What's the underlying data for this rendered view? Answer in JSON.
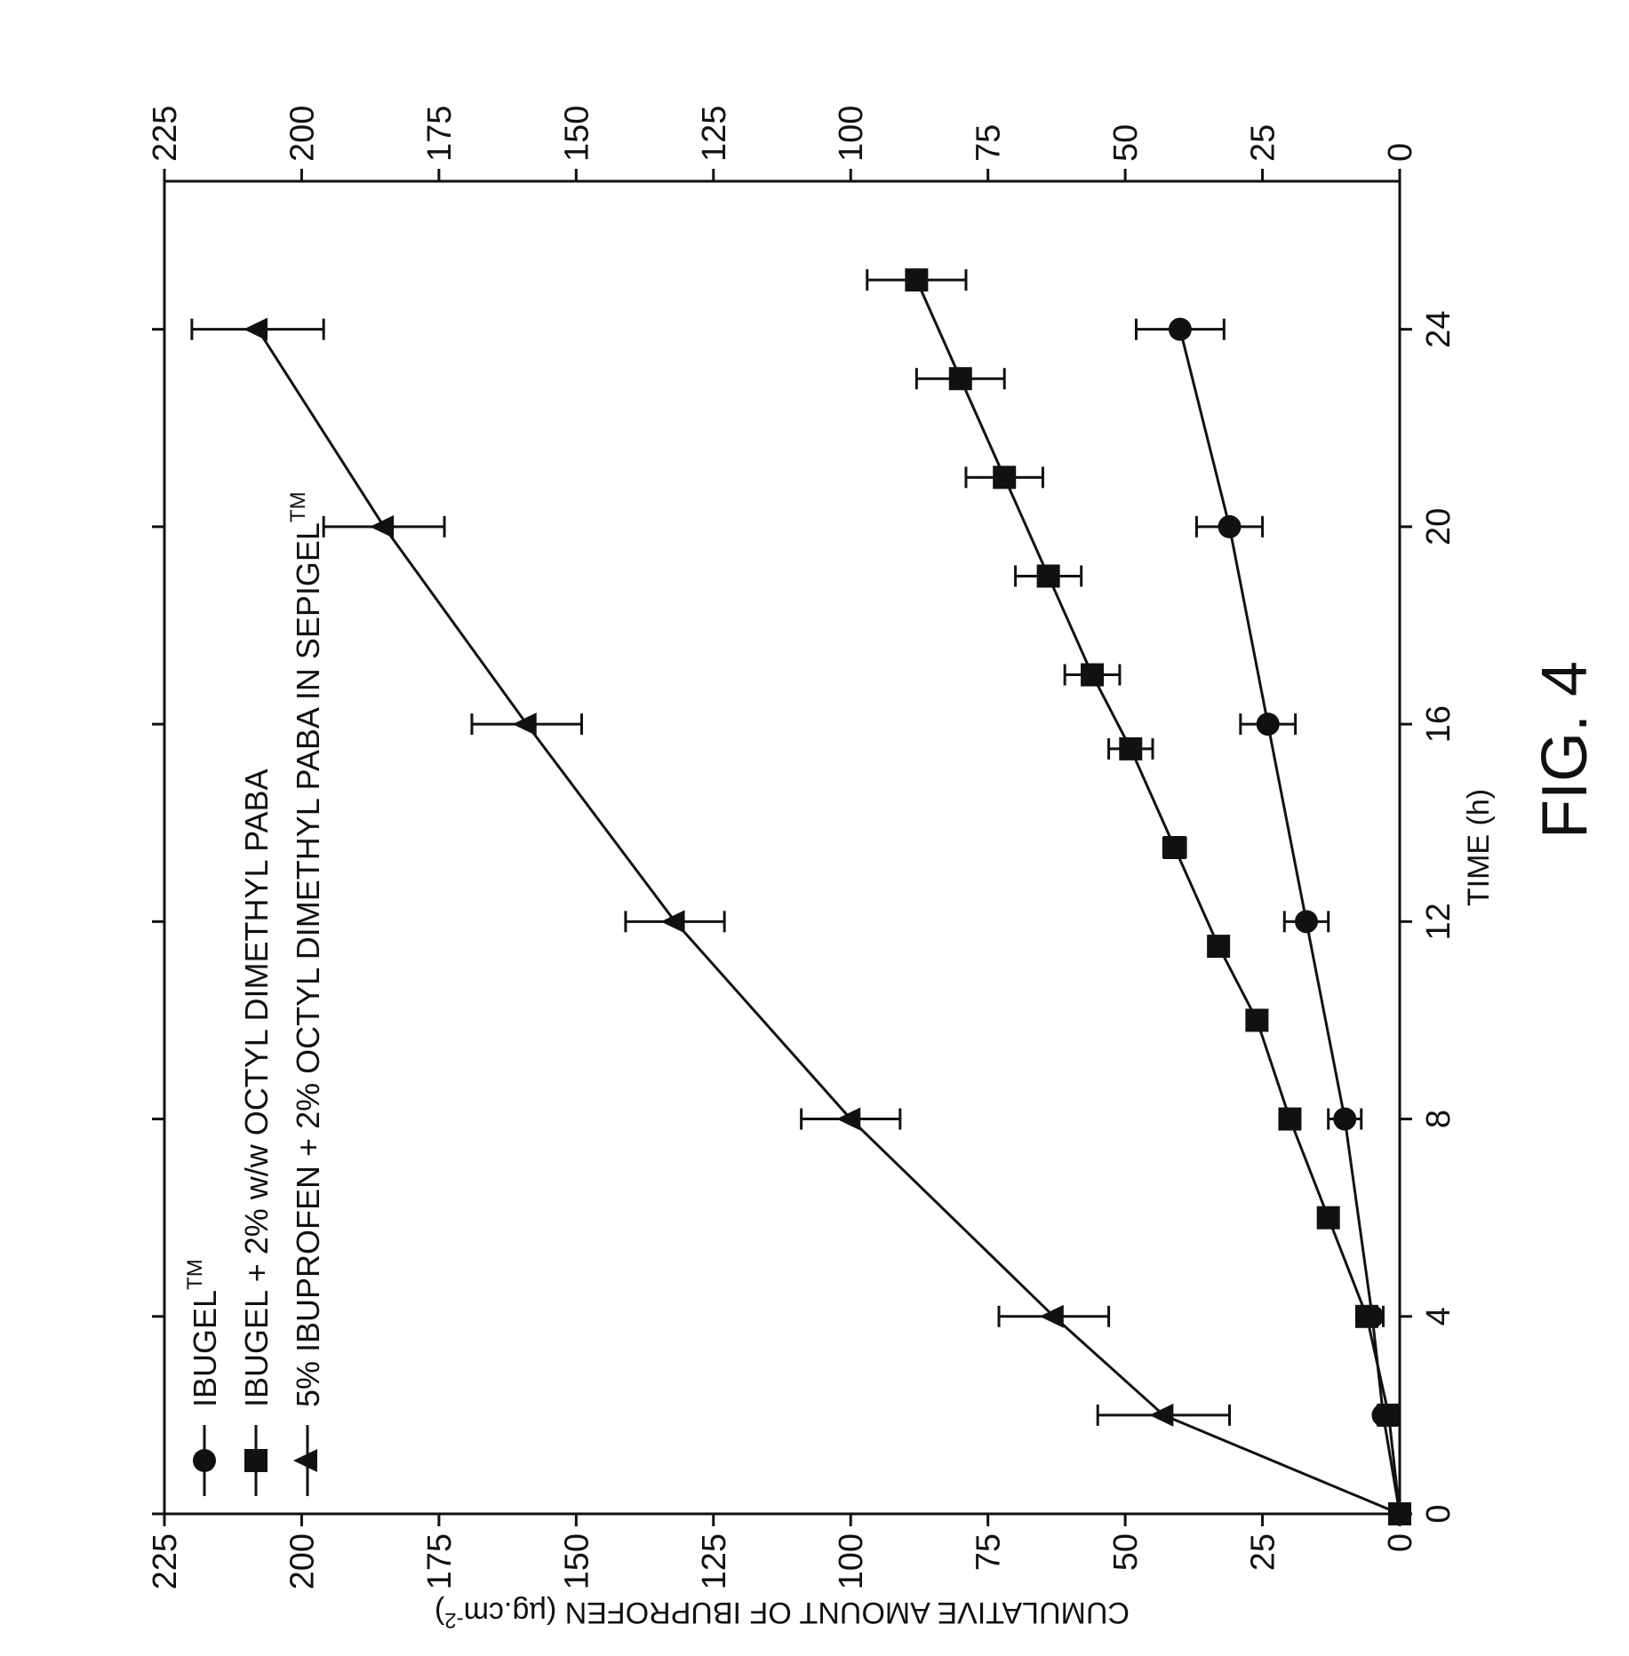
{
  "chart_data": {
    "type": "line",
    "xlabel": "TIME (h)",
    "ylabel": "CUMULATIVE AMOUNT OF IBUPROFEN (µg.cm",
    "ylabel_sup": "-2",
    "ylabel_close": ")",
    "figure_label": "FIG. 4",
    "xlim": [
      0,
      27
    ],
    "ylim": [
      0,
      225
    ],
    "x_ticks": [
      "0",
      "4",
      "8",
      "12",
      "16",
      "20",
      "24"
    ],
    "y_ticks": [
      "0",
      "25",
      "50",
      "75",
      "100",
      "125",
      "150",
      "175",
      "200",
      "225"
    ],
    "legend_placement": "top-left",
    "series": [
      {
        "name": "IBUGEL",
        "name_sup": "TM",
        "marker": "circle",
        "x": [
          0,
          2,
          4,
          8,
          12,
          16,
          20,
          24
        ],
        "y": [
          0,
          3,
          5,
          10,
          17,
          24,
          31,
          40
        ],
        "err": [
          0,
          1,
          2,
          3,
          4,
          5,
          6,
          8
        ]
      },
      {
        "name": "IBUGEL + 2% w/w OCTYL DIMETHYL PABA",
        "name_sup": "",
        "marker": "square",
        "x": [
          0,
          2,
          4,
          6,
          8,
          10,
          11.5,
          13.5,
          15.5,
          17,
          19,
          21,
          23,
          25
        ],
        "y": [
          0,
          2,
          6,
          13,
          20,
          26,
          33,
          41,
          49,
          56,
          64,
          72,
          80,
          88
        ],
        "err": [
          0,
          1,
          1,
          1,
          1,
          1,
          1,
          2,
          4,
          5,
          6,
          7,
          8,
          9
        ]
      },
      {
        "name": "5% IBUPROFEN + 2% OCTYL DIMETHYL PABA IN SEPIGEL",
        "name_sup": "TM",
        "marker": "triangle",
        "x": [
          0,
          2,
          4,
          8,
          12,
          16,
          20,
          24
        ],
        "y": [
          0,
          43,
          63,
          100,
          132,
          159,
          185,
          208
        ],
        "err": [
          0,
          12,
          10,
          9,
          9,
          10,
          11,
          12
        ]
      }
    ]
  }
}
